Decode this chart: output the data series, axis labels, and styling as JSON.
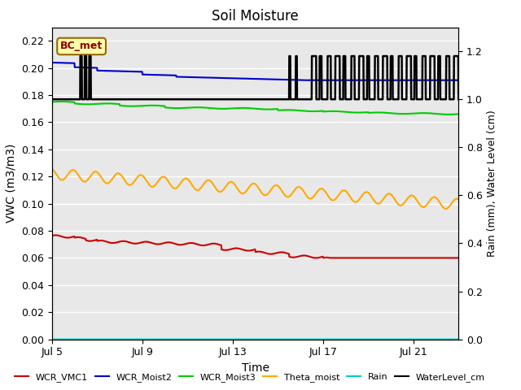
{
  "title": "Soil Moisture",
  "xlabel": "Time",
  "ylabel_left": "VWC (m3/m3)",
  "ylabel_right": "Rain (mm), Water Level (cm)",
  "annotation": "BC_met",
  "xlim_days": [
    0,
    18
  ],
  "ylim_left": [
    0.0,
    0.23
  ],
  "ylim_right": [
    0.0,
    1.3
  ],
  "xtick_labels": [
    "Jul 5",
    "Jul 9",
    "Jul 13",
    "Jul 17",
    "Jul 21"
  ],
  "xtick_positions": [
    0,
    4,
    8,
    12,
    16
  ],
  "ytick_left": [
    0.0,
    0.02,
    0.04,
    0.06,
    0.08,
    0.1,
    0.12,
    0.14,
    0.16,
    0.18,
    0.2,
    0.22
  ],
  "ytick_right": [
    0.0,
    0.2,
    0.4,
    0.6,
    0.8,
    1.0,
    1.2
  ],
  "bg_color": "#e8e8e8",
  "legend_items": [
    {
      "label": "WCR_VMC1",
      "color": "#cc0000",
      "lw": 1.5
    },
    {
      "label": "WCR_Moist2",
      "color": "#0000cc",
      "lw": 1.5
    },
    {
      "label": "WCR_Moist3",
      "color": "#00cc00",
      "lw": 1.5
    },
    {
      "label": "Theta_moist",
      "color": "#ffaa00",
      "lw": 1.5
    },
    {
      "label": "Rain",
      "color": "#00cccc",
      "lw": 1.5
    },
    {
      "label": "WaterLevel_cm",
      "color": "#000000",
      "lw": 1.5
    }
  ]
}
